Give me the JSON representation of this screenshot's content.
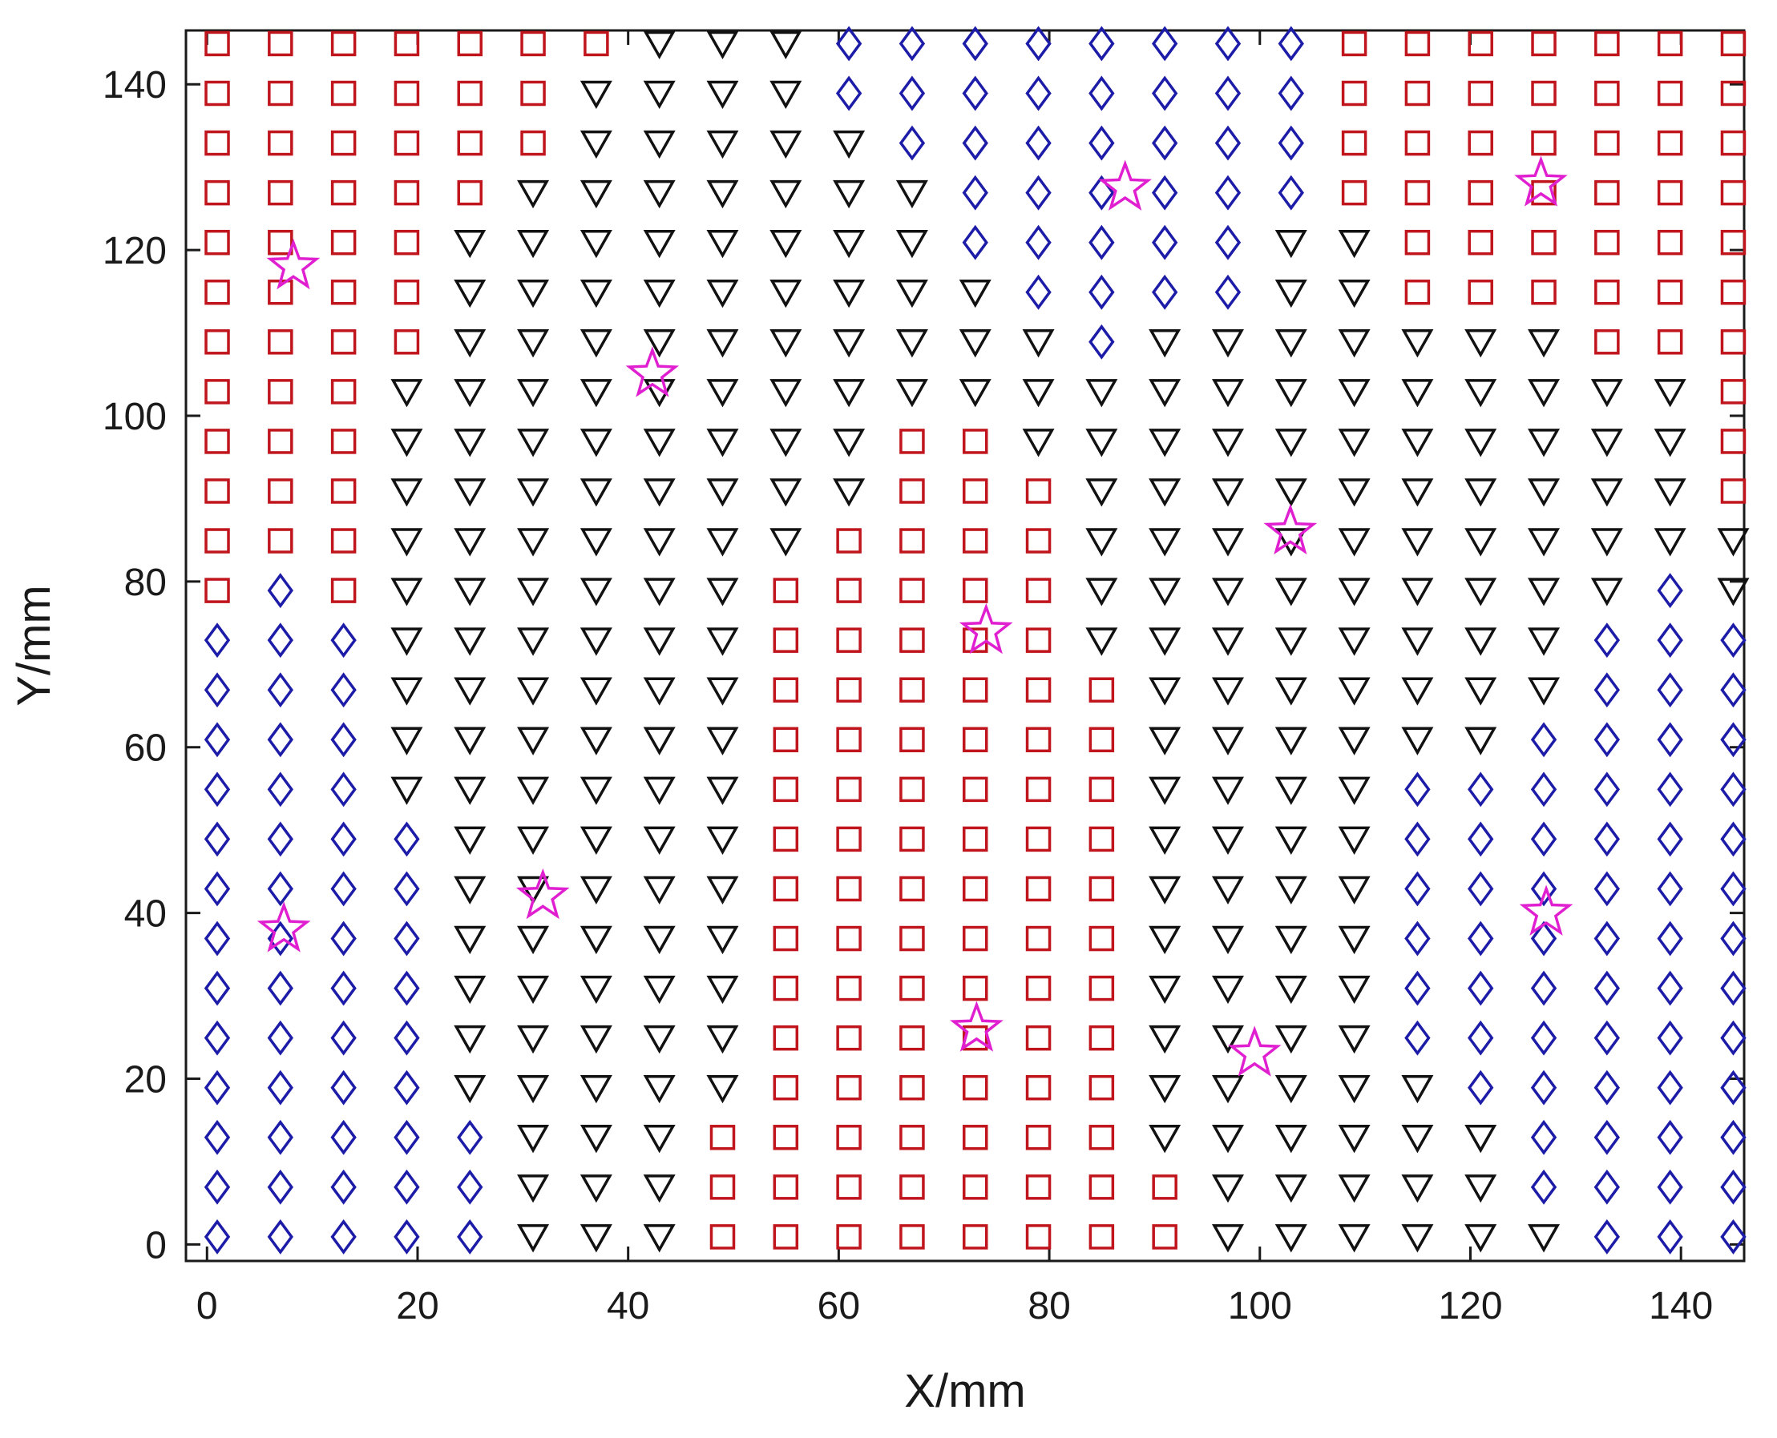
{
  "chart_data": {
    "type": "scatter",
    "title": "",
    "xlabel": "X/mm",
    "ylabel": "Y/mm",
    "xlim": [
      -2,
      146
    ],
    "ylim": [
      -2,
      146.5
    ],
    "xticks": [
      0,
      20,
      40,
      60,
      80,
      100,
      120,
      140
    ],
    "yticks": [
      0,
      20,
      40,
      60,
      80,
      100,
      120,
      140
    ],
    "grid": false,
    "legend": "none",
    "grid_points": {
      "x": [
        0.97,
        6.97,
        12.97,
        18.97,
        24.97,
        30.97,
        36.97,
        42.97,
        48.97,
        54.97,
        60.97,
        66.97,
        72.97,
        78.97,
        84.97,
        90.97,
        96.97,
        102.97,
        108.97,
        114.97,
        120.97,
        126.97,
        132.97,
        138.97,
        144.97
      ],
      "y": [
        144.91,
        138.91,
        132.91,
        126.91,
        120.91,
        114.91,
        108.91,
        102.91,
        96.91,
        90.91,
        84.91,
        78.91,
        72.91,
        66.91,
        60.91,
        54.91,
        48.91,
        42.91,
        36.91,
        30.91,
        24.91,
        18.91,
        12.91,
        6.91,
        0.91
      ],
      "legend_code": {
        "S": "square",
        "T": "triangle-down",
        "D": "diamond"
      },
      "class_rows": [
        "SSSSSSSTTTDDDDDDDDSSSSSSS",
        "SSSSSSTTTTDDDDDDDDSSSSSSS",
        "SSSSSSTTTTTDDDDDDDSSSSSSS",
        "SSSSSTTTTTTTDDDDDDSSSSSSS",
        "SSSSTTTTTTTTDDDDDTTSSSSSS",
        "SSSSTTTTTTTTTDDDDTTSSSSSS",
        "SSSSTTTTTTTTTTDTTTTTTTSSS",
        "SSSTTTTTTTTTTTTTTTTTTTTTS",
        "SSSTTTTTTTTSSTTTTTTTTTTTS",
        "SSSTTTTTTTTSSSTTTTTTTTTTS",
        "SSSTTTTTTTSSSSTTTTTTTTTTT",
        "SDSTTTTTTSSSSSTTTTTTTTTDT",
        "DDDTTTTTTSSSSSTTTTTTTTDDD",
        "DDDTTTTTTSSSSSSTTTTTTTDDD",
        "DDDTTTTTTSSSSSSTTTTTTDDDD",
        "DDDTTTTTTSSSSSSTTTTDDDDDD",
        "DDDDTTTTTSSSSSSTTTTDDDDDD",
        "DDDDTTTTTSSSSSSTTTTDDDDDD",
        "DDDDTTTTTSSSSSSTTTTDDDDDD",
        "DDDDTTTTTSSSSSSTTTTDDDDDD",
        "DDDDTTTTTSSSSSSTTTTDDDDDD",
        "DDDDTTTTTSSSSSSTTTTTDDDDD",
        "DDDDDTTTSSSSSSSTTTTTTDDDD",
        "DDDDDTTTSSSSSSSSTTTTTDDDD",
        "DDDDDTTTSSSSSSSSTTTTTTDDD"
      ]
    },
    "series": [
      {
        "marker": "square",
        "color": "#c0151c"
      },
      {
        "marker": "triangle-down",
        "color": "#111111"
      },
      {
        "marker": "diamond",
        "color": "#1c1ca8"
      },
      {
        "marker": "star",
        "color": "#e020d0",
        "points": [
          [
            8.2,
            118.0
          ],
          [
            42.3,
            105.0
          ],
          [
            87.2,
            127.5
          ],
          [
            126.7,
            128.0
          ],
          [
            102.9,
            86.0
          ],
          [
            74.0,
            74.0
          ],
          [
            7.3,
            38.0
          ],
          [
            31.9,
            42.0
          ],
          [
            127.2,
            40.0
          ],
          [
            73.1,
            26.0
          ],
          [
            99.5,
            23.0
          ]
        ]
      }
    ]
  }
}
